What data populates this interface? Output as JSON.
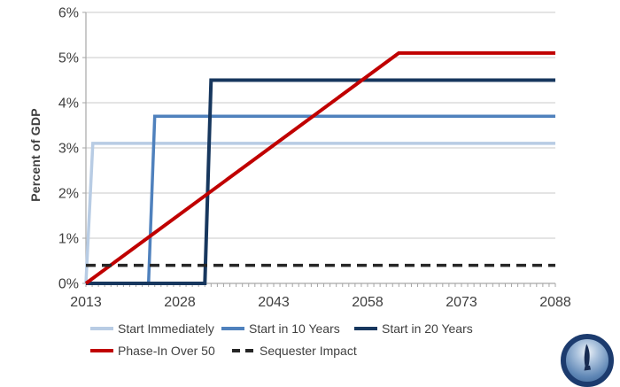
{
  "chart_data": {
    "type": "line",
    "title": "",
    "xlabel": "",
    "ylabel": "Percent of GDP",
    "xlim": [
      2013,
      2088
    ],
    "ylim": [
      0,
      6
    ],
    "x_tick_labels": [
      "2013",
      "2028",
      "2043",
      "2058",
      "2073",
      "2088"
    ],
    "x_tick_values": [
      2013,
      2028,
      2043,
      2058,
      2073,
      2088
    ],
    "y_tick_labels": [
      "0%",
      "1%",
      "2%",
      "3%",
      "4%",
      "5%",
      "6%"
    ],
    "y_tick_values": [
      0,
      1,
      2,
      3,
      4,
      5,
      6
    ],
    "minor_x_tick_interval": 1,
    "grid": "horizontal",
    "legend_position": "bottom",
    "series": [
      {
        "name": "Start Immediately",
        "color": "#b8cce4",
        "dash": null,
        "points": [
          [
            2013,
            0
          ],
          [
            2014.1,
            3.1
          ],
          [
            2088,
            3.1
          ]
        ]
      },
      {
        "name": "Start in 10 Years",
        "color": "#4f81bd",
        "dash": null,
        "points": [
          [
            2013,
            0
          ],
          [
            2023,
            0
          ],
          [
            2024,
            3.7
          ],
          [
            2088,
            3.7
          ]
        ]
      },
      {
        "name": "Start in 20 Years",
        "color": "#17375e",
        "dash": null,
        "points": [
          [
            2013,
            0
          ],
          [
            2032,
            0
          ],
          [
            2033,
            4.5
          ],
          [
            2088,
            4.5
          ]
        ]
      },
      {
        "name": "Phase-In Over 50",
        "color": "#c00000",
        "dash": null,
        "points": [
          [
            2013,
            0
          ],
          [
            2063,
            5.1
          ],
          [
            2088,
            5.1
          ]
        ]
      },
      {
        "name": "Sequester Impact",
        "color": "#262626",
        "dash": "11,7",
        "points": [
          [
            2013,
            0.4
          ],
          [
            2088,
            0.4
          ]
        ]
      }
    ]
  },
  "legend": {
    "items": [
      {
        "label": "Start Immediately",
        "series": 0
      },
      {
        "label": "Start in 10 Years",
        "series": 1
      },
      {
        "label": "Start in 20 Years",
        "series": 2
      },
      {
        "label": "Phase-In Over 50",
        "series": 3
      },
      {
        "label": "Sequester Impact",
        "series": 4
      }
    ]
  },
  "logo": {
    "name": "blue-circle-statue-logo"
  }
}
